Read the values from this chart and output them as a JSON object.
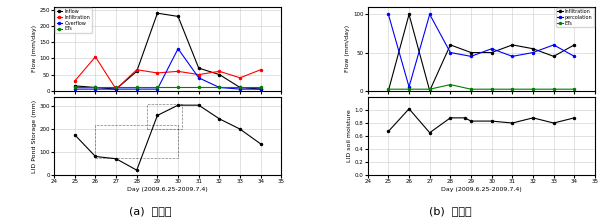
{
  "days": [
    25,
    26,
    27,
    28,
    29,
    30,
    31,
    32,
    33,
    34
  ],
  "xlim": [
    24,
    35
  ],
  "xticks": [
    24,
    25,
    26,
    27,
    28,
    29,
    30,
    31,
    32,
    33,
    34,
    35
  ],
  "xticklabels": [
    "24",
    "25",
    "26",
    "27",
    "28",
    "29",
    "30",
    "31",
    "32",
    "33",
    "34",
    "35"
  ],
  "left_top": {
    "inflow": [
      15,
      10,
      5,
      60,
      240,
      230,
      70,
      50,
      10,
      5
    ],
    "infiltration": [
      30,
      105,
      5,
      65,
      55,
      60,
      50,
      60,
      40,
      65
    ],
    "overflow": [
      5,
      5,
      5,
      5,
      5,
      130,
      40,
      10,
      5,
      5
    ],
    "ets": [
      10,
      10,
      10,
      10,
      10,
      10,
      10,
      10,
      10,
      10
    ],
    "ylabel": "Flow (mm/day)",
    "ylim": [
      0,
      260
    ],
    "yticks": [
      0,
      50,
      100,
      150,
      200,
      250
    ],
    "legend": [
      "Inflow",
      "Infiltration",
      "Overflow",
      "ETs"
    ],
    "colors": [
      "black",
      "red",
      "blue",
      "green"
    ]
  },
  "left_bottom": {
    "storage": [
      175,
      80,
      70,
      20,
      260,
      305,
      305,
      245,
      200,
      135
    ],
    "ylabel": "LID Pond Storage (mm)",
    "ylim": [
      0,
      340
    ],
    "yticks": [
      0,
      100,
      200,
      300
    ],
    "xlabel": "Day (2009.6.25-2009.7.4)",
    "color": "black",
    "rect_x": [
      26,
      30,
      30,
      26,
      26
    ],
    "rect_y": [
      75,
      75,
      220,
      220,
      75
    ],
    "rect2_x": [
      28.5,
      30.2,
      30.2,
      28.5,
      28.5
    ],
    "rect2_y": [
      200,
      200,
      310,
      310,
      200
    ]
  },
  "right_top": {
    "infiltration": [
      0,
      100,
      0,
      60,
      50,
      50,
      60,
      55,
      45,
      60
    ],
    "percolation": [
      100,
      5,
      100,
      50,
      45,
      55,
      45,
      50,
      60,
      45
    ],
    "ets": [
      2,
      2,
      2,
      8,
      2,
      2,
      2,
      2,
      2,
      2
    ],
    "ylabel": "Flow (mm/day)",
    "ylim": [
      0,
      110
    ],
    "yticks": [
      0,
      50,
      100
    ],
    "legend": [
      "Infiltration",
      "percolation",
      "ETs"
    ],
    "colors": [
      "black",
      "blue",
      "green"
    ]
  },
  "right_bottom": {
    "moisture": [
      0.67,
      1.02,
      0.65,
      0.88,
      0.88,
      0.83,
      0.83,
      0.8,
      0.88,
      0.8,
      0.88
    ],
    "days": [
      25,
      26,
      27,
      28,
      28.7,
      29,
      30,
      31,
      32,
      33,
      34
    ],
    "ylabel": "LID soil moisture",
    "ylim": [
      0,
      1.2
    ],
    "yticks": [
      0,
      0.2,
      0.4,
      0.6,
      0.8,
      1.0
    ],
    "xlabel": "Day (2009.6.25-2009.7.4)",
    "color": "black"
  },
  "caption_left": "(a)  지표층",
  "caption_right": "(b)  토양층",
  "caption_fontsize": 8,
  "background_color": "white",
  "grid_color": "#cccccc"
}
